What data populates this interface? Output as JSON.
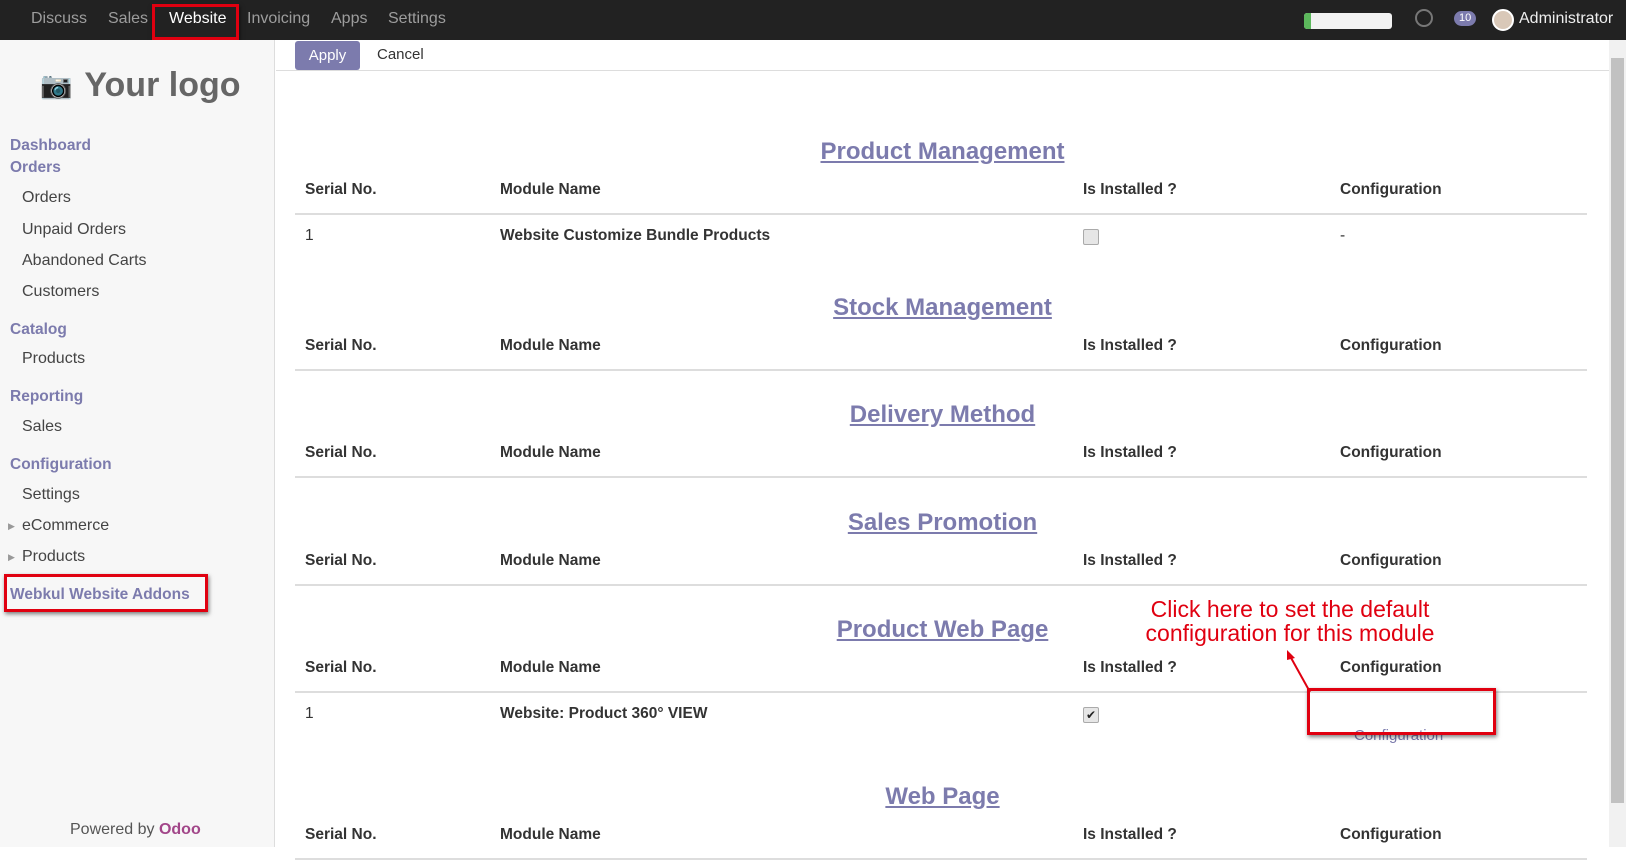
{
  "topbar": {
    "menus": [
      "Discuss",
      "Sales",
      "Website",
      "Invoicing",
      "Apps",
      "Settings"
    ],
    "active": "Website",
    "chat_count": "10",
    "user": "Administrator",
    "progress_percent": 8
  },
  "sidebar": {
    "logo": "Your logo",
    "dashboard": "Dashboard",
    "orders_group": "Orders",
    "orders": [
      "Orders",
      "Unpaid Orders",
      "Abandoned Carts",
      "Customers"
    ],
    "catalog_group": "Catalog",
    "catalog": [
      "Products"
    ],
    "reporting_group": "Reporting",
    "reporting": [
      "Sales"
    ],
    "config_group": "Configuration",
    "config": [
      "Settings",
      "eCommerce",
      "Products"
    ],
    "addons": "Webkul Website Addons",
    "powered_by": "Powered by",
    "odoo": "Odoo"
  },
  "controls": {
    "apply": "Apply",
    "cancel": "Cancel"
  },
  "columns": {
    "serial": "Serial No.",
    "module": "Module Name",
    "installed": "Is Installed ?",
    "config": "Configuration"
  },
  "sections": [
    {
      "title": "Product Management",
      "rows": [
        {
          "serial": "1",
          "module": "Website Customize Bundle Products",
          "installed": false,
          "config": "-"
        }
      ]
    },
    {
      "title": "Stock Management",
      "rows": []
    },
    {
      "title": "Delivery Method",
      "rows": []
    },
    {
      "title": "Sales Promotion",
      "rows": []
    },
    {
      "title": "Product Web Page",
      "rows": [
        {
          "serial": "1",
          "module": "Website: Product 360° VIEW",
          "installed": true,
          "config": "Configuration"
        }
      ]
    },
    {
      "title": "Web Page",
      "rows": []
    }
  ],
  "annotation": "Click here to set the default configuration for this module",
  "colors": {
    "accent": "#7c7bad",
    "highlight": "#e00010",
    "topbar": "#222222"
  }
}
